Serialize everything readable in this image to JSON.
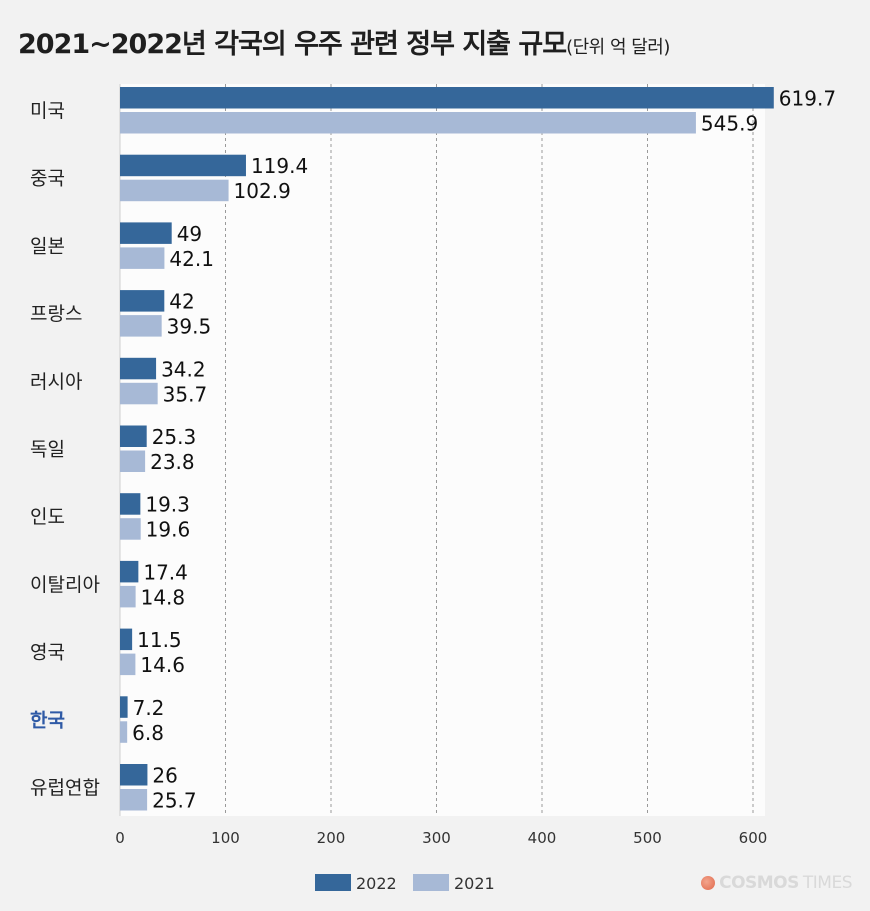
{
  "title": "2021~2022년 각국의 우주 관련 정부 지출 규모",
  "subtitle": "(단위 억 달러)",
  "brand": {
    "name": "COSMOS",
    "suffix": "TIMES"
  },
  "colors": {
    "series_2022": "#35679a",
    "series_2021": "#a7b9d6",
    "highlight": "#2f5aa6",
    "background": "#f2f2f2",
    "plot_bg": "#fcfcfc"
  },
  "chart_data": {
    "type": "bar",
    "orientation": "horizontal",
    "title": "2021~2022년 각국의 우주 관련 정부 지출 규모",
    "unit": "(단위 억 달러)",
    "categories": [
      "미국",
      "중국",
      "일본",
      "프랑스",
      "러시아",
      "독일",
      "인도",
      "이탈리아",
      "영국",
      "한국",
      "유럽연합"
    ],
    "highlight_category": "한국",
    "series": [
      {
        "name": "2022",
        "values": [
          619.7,
          119.4,
          49,
          42,
          34.2,
          25.3,
          19.3,
          17.4,
          11.5,
          7.2,
          26
        ]
      },
      {
        "name": "2021",
        "values": [
          545.9,
          102.9,
          42.1,
          39.5,
          35.7,
          23.8,
          19.6,
          14.8,
          14.6,
          6.8,
          25.7
        ]
      }
    ],
    "value_labels": [
      [
        "619.7",
        "119.4",
        "49",
        "42",
        "34.2",
        "25.3",
        "19.3",
        "17.4",
        "11.5",
        "7.2",
        "26"
      ],
      [
        "545.9",
        "102.9",
        "42.1",
        "39.5",
        "35.7",
        "23.8",
        "19.6",
        "14.8",
        "14.6",
        "6.8",
        "25.7"
      ]
    ],
    "xlim": [
      0,
      600
    ],
    "xticks": [
      0,
      100,
      200,
      300,
      400,
      500,
      600
    ],
    "grid": "vertical-dashed",
    "legend": "bottom-center"
  }
}
